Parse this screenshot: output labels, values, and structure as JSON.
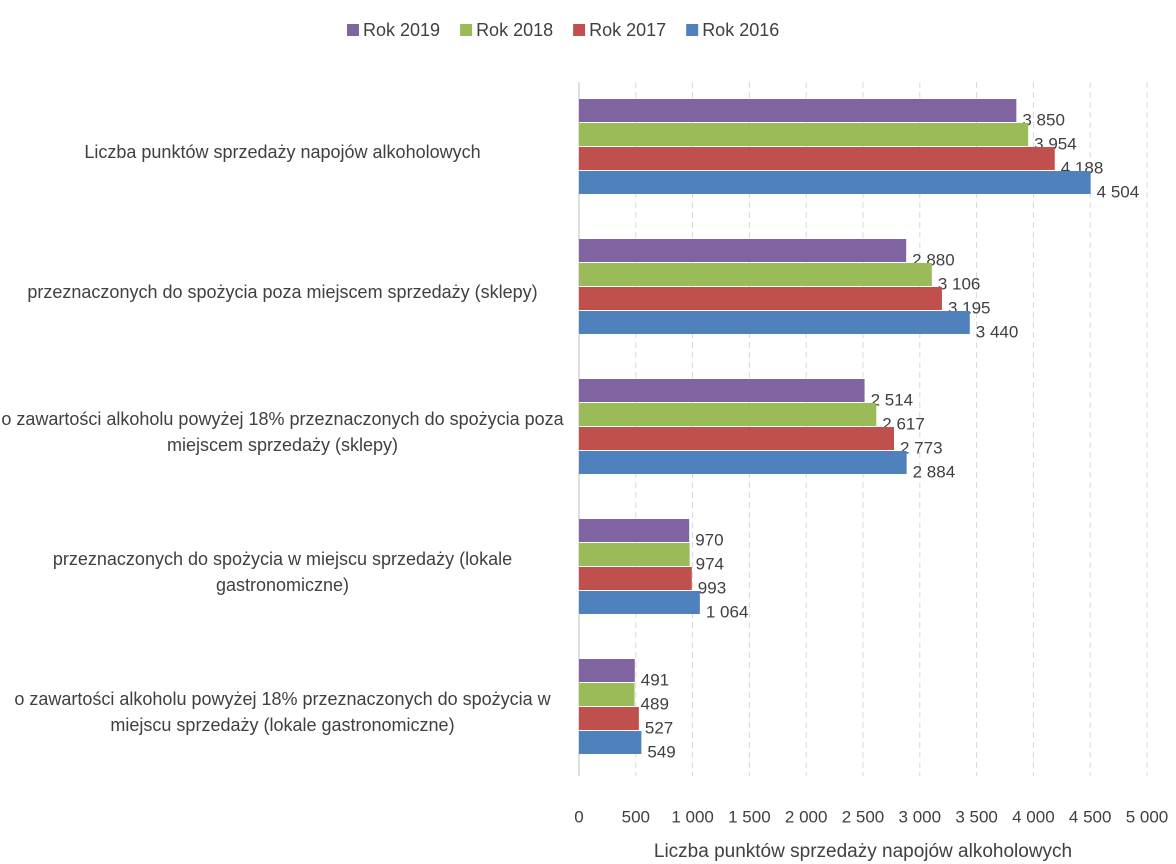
{
  "chart_data": {
    "type": "bar",
    "orientation": "horizontal",
    "xlabel": "Liczba punktów sprzedaży napojów alkoholowych",
    "categories": [
      "Liczba punktów sprzedaży napojów alkoholowych",
      "przeznaczonych do spożycia poza miejscem sprzedaży (sklepy)",
      "o zawartości alkoholu powyżej 18% przeznaczonych do spożycia poza miejscem sprzedaży (sklepy)",
      "przeznaczonych do spożycia w miejscu sprzedaży (lokale gastronomiczne)",
      "o zawartości alkoholu powyżej 18% przeznaczonych do spożycia w miejscu sprzedaży (lokale gastronomiczne)"
    ],
    "series": [
      {
        "name": "Rok 2019",
        "color": "#8064a2",
        "values": [
          3850,
          2880,
          2514,
          970,
          491
        ],
        "value_labels": [
          "3 850",
          "2 880",
          "2 514",
          "970",
          "491"
        ]
      },
      {
        "name": "Rok 2018",
        "color": "#9bbb59",
        "values": [
          3954,
          3106,
          2617,
          974,
          489
        ],
        "value_labels": [
          "3 954",
          "3 106",
          "2 617",
          "974",
          "489"
        ]
      },
      {
        "name": "Rok 2017",
        "color": "#c0504d",
        "values": [
          4188,
          3195,
          2773,
          993,
          527
        ],
        "value_labels": [
          "4 188",
          "3 195",
          "2 773",
          "993",
          "527"
        ]
      },
      {
        "name": "Rok 2016",
        "color": "#4f81bd",
        "values": [
          4504,
          3440,
          2884,
          1064,
          549
        ],
        "value_labels": [
          "4 504",
          "3 440",
          "2 884",
          "1 064",
          "549"
        ]
      }
    ],
    "xlim": [
      0,
      5000
    ],
    "xticks": [
      0,
      500,
      {
        "value": 1000,
        "label": "1 000"
      },
      {
        "value": 1500,
        "label": "1 500"
      },
      {
        "value": 2000,
        "label": "2 000"
      },
      {
        "value": 2500,
        "label": "2 500"
      },
      {
        "value": 3000,
        "label": "3 000"
      },
      {
        "value": 3500,
        "label": "3 500"
      },
      {
        "value": 4000,
        "label": "4 000"
      },
      {
        "value": 4500,
        "label": "4 500"
      },
      {
        "value": 5000,
        "label": "5 000"
      }
    ],
    "grid": true,
    "legend": "top"
  }
}
